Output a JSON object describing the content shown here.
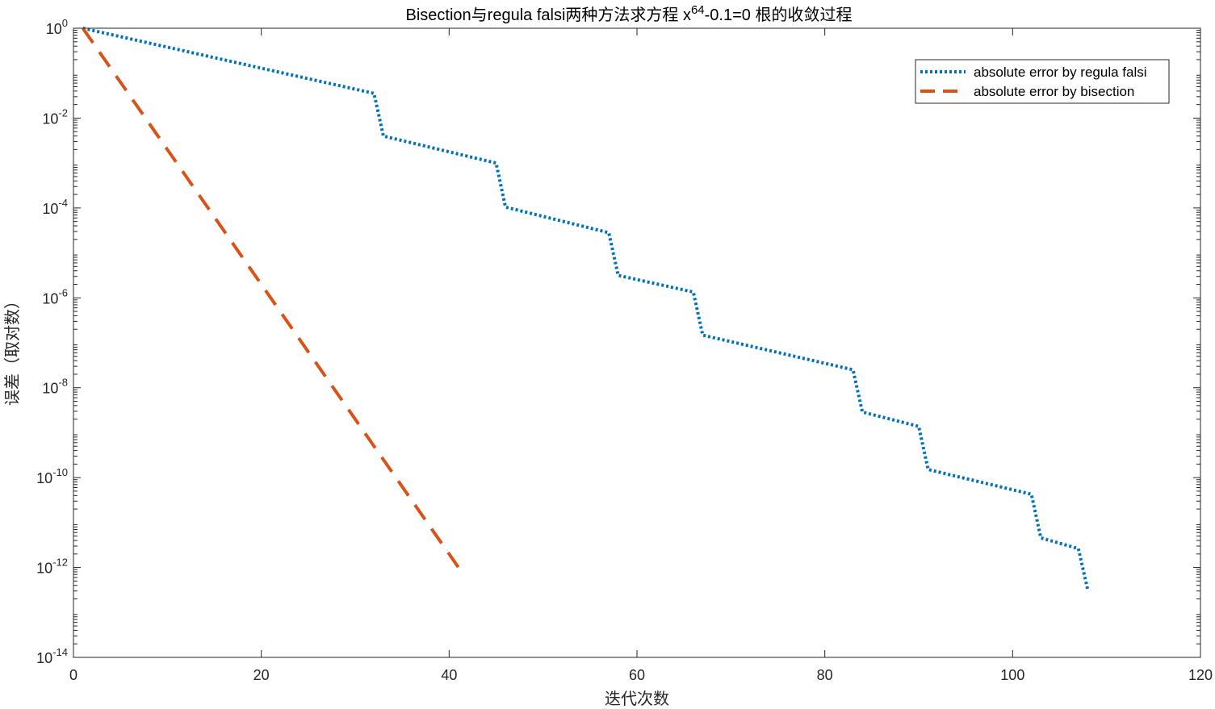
{
  "chart_data": {
    "type": "line",
    "title_parts": {
      "prefix": "Bisection与regula falsi两种方法求方程 x",
      "superscript": "64",
      "suffix": "-0.1=0 根的收敛过程"
    },
    "xlabel": "迭代次数",
    "ylabel": "误差（取对数）",
    "xlim": [
      0,
      120
    ],
    "ylim_log10": [
      -14,
      0
    ],
    "y_scale": "log",
    "grid": false,
    "legend_position": "top-right",
    "x_ticks": [
      0,
      20,
      40,
      60,
      80,
      100,
      120
    ],
    "y_tick_exponents": [
      0,
      -2,
      -4,
      -6,
      -8,
      -10,
      -12,
      -14
    ],
    "y_tick_base": "10",
    "series": [
      {
        "name": "absolute error by regula falsi",
        "color": "#0072BD",
        "style": "dotted",
        "x": [
          1,
          32,
          33,
          45,
          46,
          57,
          58,
          66,
          67,
          83,
          84,
          90,
          91,
          102,
          103,
          107,
          108
        ],
        "log10_y": [
          0,
          -1.45,
          -2.4,
          -3.0,
          -3.98,
          -4.55,
          -5.5,
          -5.87,
          -6.83,
          -7.6,
          -8.54,
          -8.86,
          -9.82,
          -10.37,
          -11.34,
          -11.58,
          -12.5
        ]
      },
      {
        "name": "absolute error by bisection",
        "color": "#D95319",
        "style": "dashed",
        "x": [
          1,
          41
        ],
        "log10_y": [
          0,
          -12.0
        ]
      }
    ]
  }
}
